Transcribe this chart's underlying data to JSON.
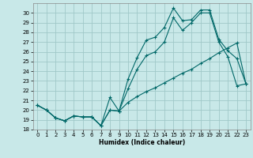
{
  "xlabel": "Humidex (Indice chaleur)",
  "bg_color": "#c8e8e8",
  "grid_color": "#a0c8c8",
  "line_color": "#006868",
  "xlim": [
    -0.5,
    23.5
  ],
  "ylim": [
    18,
    31
  ],
  "yticks": [
    18,
    19,
    20,
    21,
    22,
    23,
    24,
    25,
    26,
    27,
    28,
    29,
    30
  ],
  "xticks": [
    0,
    1,
    2,
    3,
    4,
    5,
    6,
    7,
    8,
    9,
    10,
    11,
    12,
    13,
    14,
    15,
    16,
    17,
    18,
    19,
    20,
    21,
    22,
    23
  ],
  "line1_x": [
    0,
    1,
    2,
    3,
    4,
    5,
    6,
    7,
    8,
    9,
    10,
    11,
    12,
    13,
    14,
    15,
    16,
    17,
    18,
    19,
    20,
    21,
    22,
    23
  ],
  "line1_y": [
    20.5,
    20.0,
    19.2,
    18.9,
    19.4,
    19.3,
    19.3,
    18.4,
    21.3,
    19.9,
    23.2,
    25.4,
    27.2,
    27.5,
    28.5,
    30.5,
    29.2,
    29.3,
    30.3,
    30.3,
    27.3,
    26.1,
    25.3,
    22.7
  ],
  "line2_x": [
    0,
    1,
    2,
    3,
    4,
    5,
    6,
    7,
    8,
    9,
    10,
    11,
    12,
    13,
    14,
    15,
    16,
    17,
    18,
    19,
    20,
    21,
    22,
    23
  ],
  "line2_y": [
    20.5,
    20.0,
    19.2,
    18.9,
    19.4,
    19.3,
    19.3,
    18.4,
    20.0,
    19.9,
    20.8,
    21.4,
    21.9,
    22.3,
    22.8,
    23.3,
    23.8,
    24.2,
    24.8,
    25.3,
    25.9,
    26.4,
    26.9,
    22.7
  ],
  "line3_x": [
    0,
    1,
    2,
    3,
    4,
    5,
    6,
    7,
    8,
    9,
    10,
    11,
    12,
    13,
    14,
    15,
    16,
    17,
    18,
    19,
    20,
    21,
    22,
    23
  ],
  "line3_y": [
    20.5,
    20.0,
    19.2,
    18.9,
    19.4,
    19.3,
    19.3,
    18.4,
    20.0,
    19.9,
    22.2,
    24.2,
    25.6,
    26.0,
    27.0,
    29.5,
    28.2,
    29.0,
    30.0,
    30.0,
    27.0,
    25.5,
    22.5,
    22.7
  ]
}
